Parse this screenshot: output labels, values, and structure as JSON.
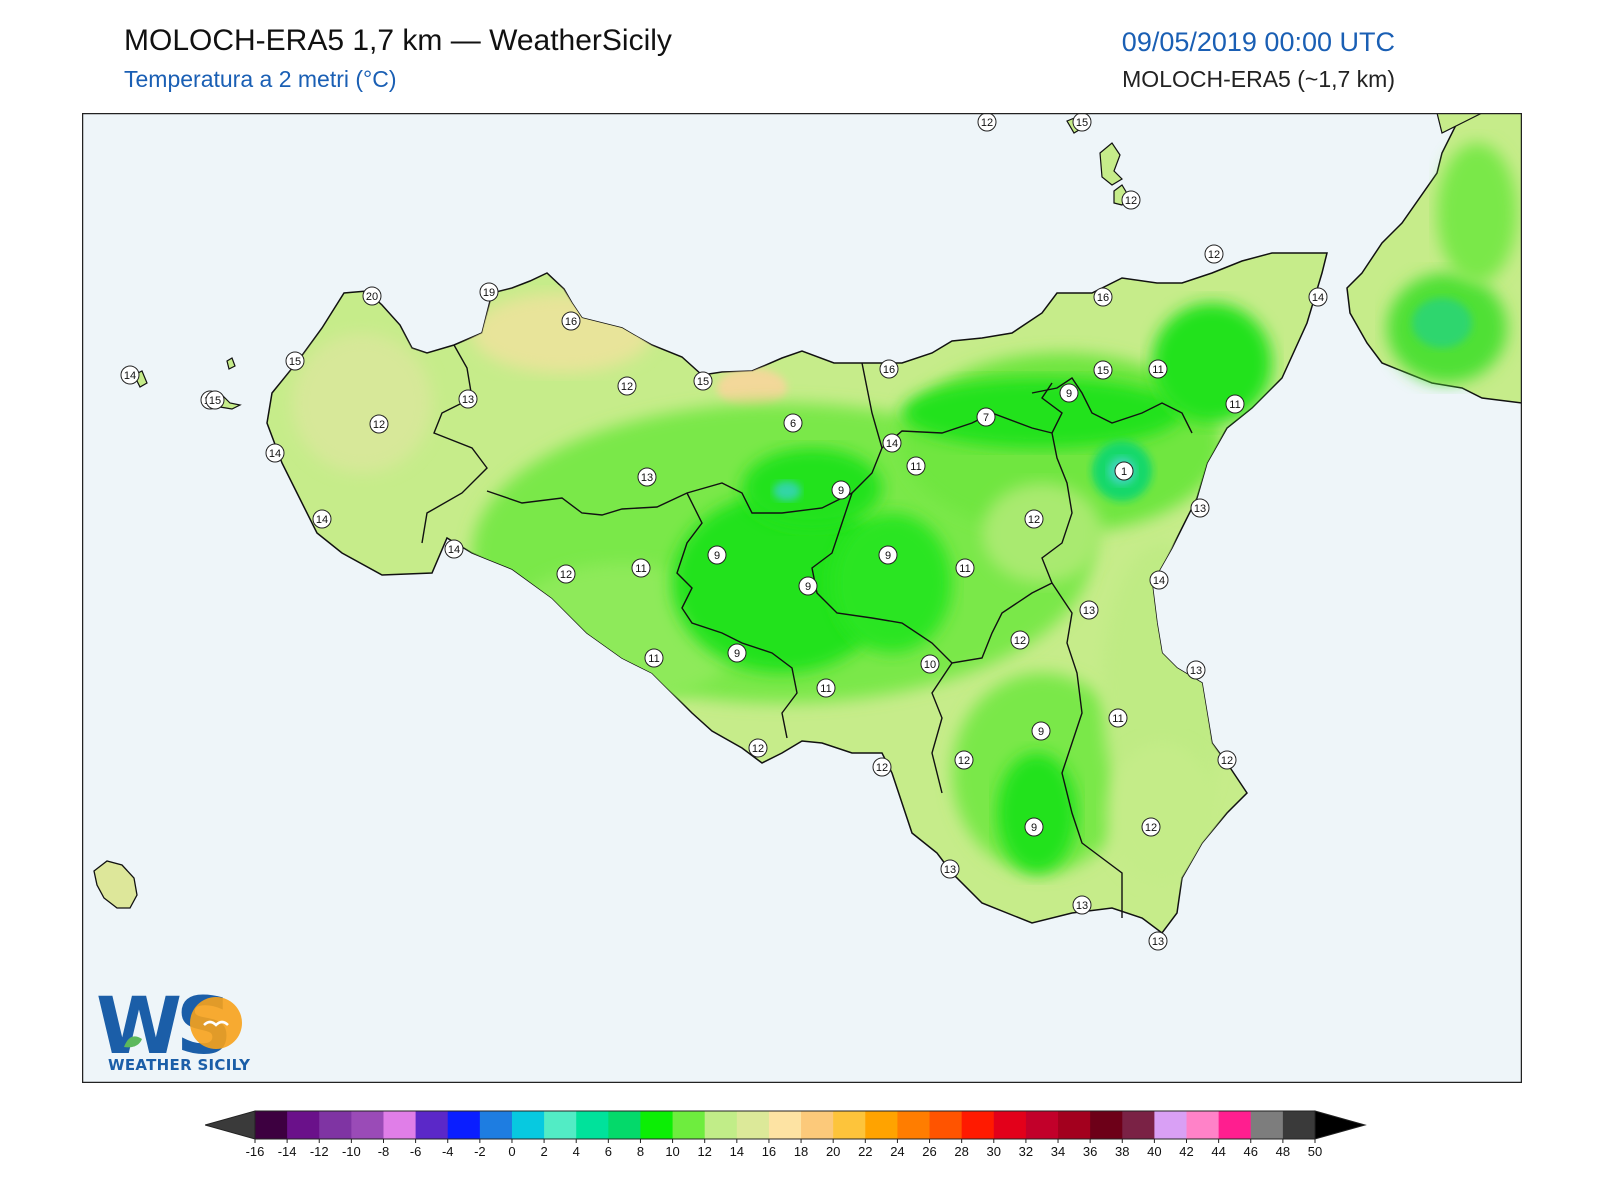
{
  "header": {
    "title": "MOLOCH-ERA5 1,7 km — WeatherSicily",
    "subtitle": "Temperatura a 2 metri (°C)",
    "datetime": "09/05/2019 00:00 UTC",
    "model_label": "MOLOCH-ERA5 (~1,7 km)"
  },
  "logo": {
    "letters": "WS",
    "text": "WEATHER SICILY"
  },
  "colors": {
    "sea": "#eef5f9",
    "land_base": "#c6ec8a",
    "land_warm": "#d9e89a",
    "green_mid": "#7ae84a",
    "green_cold": "#1fe01f",
    "cyan_spot": "#33d6a5",
    "coast": "#111111"
  },
  "colorbar": {
    "ticks": [
      "-16",
      "-14",
      "-12",
      "-10",
      "-8",
      "-6",
      "-4",
      "-2",
      "0",
      "2",
      "4",
      "6",
      "8",
      "10",
      "12",
      "14",
      "16",
      "18",
      "20",
      "22",
      "24",
      "26",
      "28",
      "30",
      "32",
      "34",
      "36",
      "38",
      "40",
      "42",
      "44",
      "46",
      "48",
      "50"
    ],
    "colors": [
      "#3d0040",
      "#6a118a",
      "#7f34a3",
      "#9a4bb7",
      "#e07ee8",
      "#5b28c8",
      "#0a1eff",
      "#1e7de1",
      "#07c9e0",
      "#52ecc5",
      "#00e29b",
      "#04d96a",
      "#0cee05",
      "#6eed3e",
      "#c1ed88",
      "#dce999",
      "#fde3a3",
      "#fcc97a",
      "#fdc43b",
      "#ffa300",
      "#ff7d00",
      "#ff5400",
      "#ff1a00",
      "#e3001a",
      "#c2002a",
      "#a3001e",
      "#6d0018",
      "#7a2245",
      "#d9a0f5",
      "#ff82c8",
      "#ff1e8f",
      "#7d7d7d",
      "#3a3a3a"
    ]
  },
  "stations": [
    {
      "v": "14"
    },
    {
      "v": "12"
    },
    {
      "v": "15"
    },
    {
      "v": "12"
    },
    {
      "v": "12"
    },
    {
      "v": "14"
    },
    {
      "v": "20"
    },
    {
      "v": "19"
    },
    {
      "v": "16"
    },
    {
      "v": "15"
    },
    {
      "v": "14"
    },
    {
      "v": "15"
    },
    {
      "v": "13"
    },
    {
      "v": "12"
    },
    {
      "v": "14"
    },
    {
      "v": "14"
    },
    {
      "v": "14"
    },
    {
      "v": "15"
    },
    {
      "v": "12"
    },
    {
      "v": "15"
    },
    {
      "v": "13"
    },
    {
      "v": "6"
    },
    {
      "v": "9"
    },
    {
      "v": "16"
    },
    {
      "v": "16"
    },
    {
      "v": "11"
    },
    {
      "v": "7"
    },
    {
      "v": "9"
    },
    {
      "v": "11"
    },
    {
      "v": "11"
    },
    {
      "v": "1"
    },
    {
      "v": "13"
    },
    {
      "v": "12"
    },
    {
      "v": "9"
    },
    {
      "v": "12"
    },
    {
      "v": "11"
    },
    {
      "v": "9"
    },
    {
      "v": "9"
    },
    {
      "v": "11"
    },
    {
      "v": "14"
    },
    {
      "v": "13"
    },
    {
      "v": "12"
    },
    {
      "v": "11"
    },
    {
      "v": "9"
    },
    {
      "v": "10"
    },
    {
      "v": "11"
    },
    {
      "v": "13"
    },
    {
      "v": "11"
    },
    {
      "v": "9"
    },
    {
      "v": "12"
    },
    {
      "v": "12"
    },
    {
      "v": "12"
    },
    {
      "v": "12"
    },
    {
      "v": "9"
    },
    {
      "v": "12"
    },
    {
      "v": "13"
    },
    {
      "v": "13"
    },
    {
      "v": "13"
    },
    {
      "v": "14"
    }
  ]
}
